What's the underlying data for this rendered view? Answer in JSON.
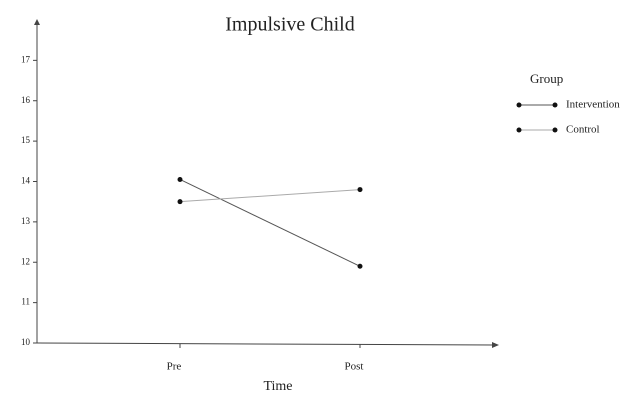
{
  "chart_data": {
    "type": "line",
    "title": "Impulsive Child",
    "x_label": "Time",
    "categories": [
      "Pre",
      "Post"
    ],
    "series": [
      {
        "name": "Intervention",
        "color": "#555555",
        "values": [
          14.05,
          11.9
        ]
      },
      {
        "name": "Control",
        "color": "#aaaaaa",
        "values": [
          13.5,
          13.8
        ]
      }
    ],
    "legend_title": "Group",
    "legend_position": "right",
    "ylim": [
      10,
      17.95
    ],
    "yticks": [
      10,
      11,
      12,
      13,
      14,
      15,
      16,
      17
    ],
    "grid": false
  }
}
